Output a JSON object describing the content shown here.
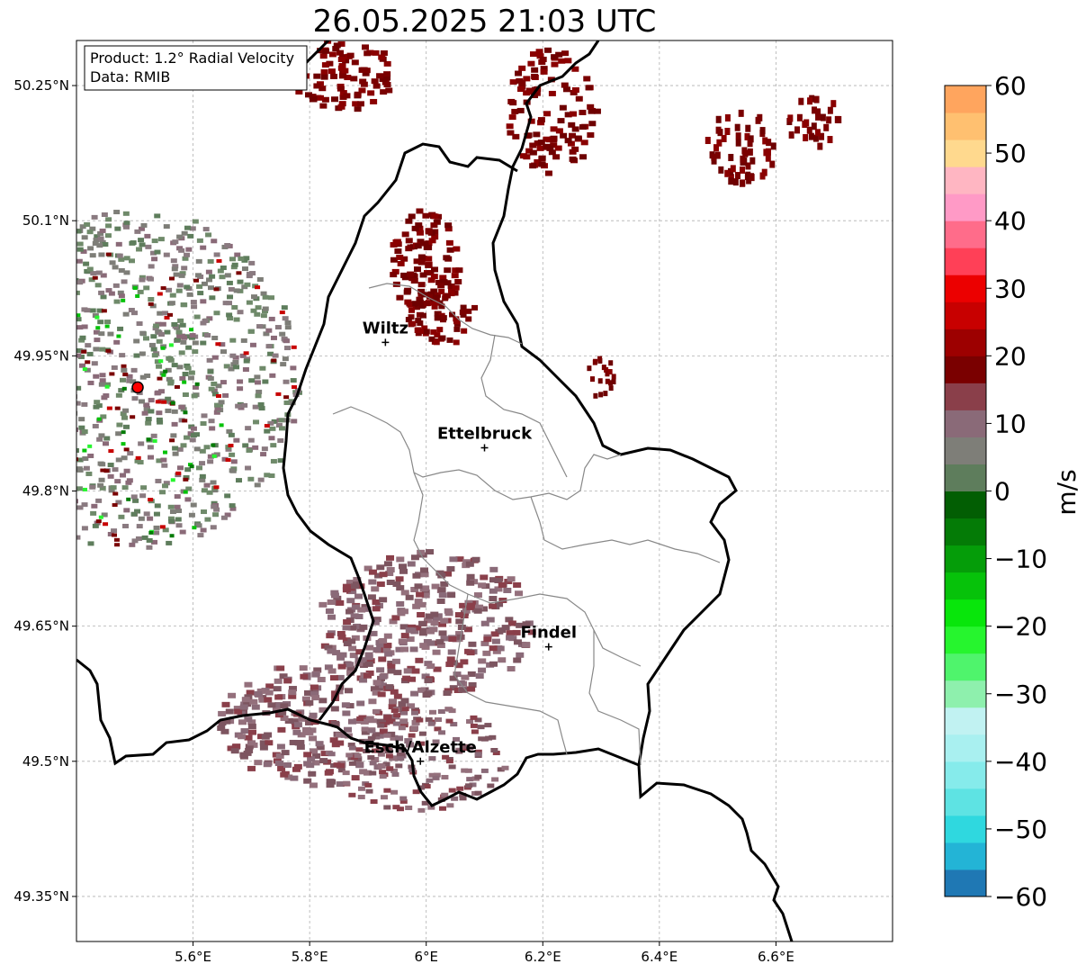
{
  "title": "26.05.2025 21:03 UTC",
  "info_box": {
    "product": "Product: 1.2° Radial Velocity",
    "source": "Data: RMIB"
  },
  "map": {
    "lon_range": [
      5.4,
      6.8
    ],
    "lat_range": [
      49.3,
      50.3
    ],
    "lon_ticks": [
      "5.6°E",
      "5.8°E",
      "6°E",
      "6.2°E",
      "6.4°E",
      "6.6°E"
    ],
    "lat_ticks": [
      "50.25°N",
      "50.1°N",
      "49.95°N",
      "49.8°N",
      "49.65°N",
      "49.5°N",
      "49.35°N"
    ],
    "grid": true,
    "radar_site": {
      "lon": 5.505,
      "lat": 49.915
    },
    "cities": [
      {
        "name": "Wiltz",
        "lon": 5.93,
        "lat": 49.965
      },
      {
        "name": "Ettelbruck",
        "lon": 6.1,
        "lat": 49.848
      },
      {
        "name": "Findel",
        "lon": 6.21,
        "lat": 49.627
      },
      {
        "name": "Esch/Alzette",
        "lon": 5.99,
        "lat": 49.5
      }
    ]
  },
  "colorbar": {
    "label": "m/s",
    "range": [
      -60,
      60
    ],
    "ticks": [
      "60",
      "50",
      "40",
      "30",
      "20",
      "10",
      "0",
      "−10",
      "−20",
      "−30",
      "−40",
      "−50",
      "−60"
    ],
    "colors": [
      "#1f78b4",
      "#23b4d6",
      "#2fd8df",
      "#5ee3e3",
      "#86ebeb",
      "#a9f0f0",
      "#c1f2f2",
      "#8ef0ad",
      "#4ff46c",
      "#26f52e",
      "#08e60b",
      "#06c20a",
      "#059d09",
      "#047b06",
      "#025e03",
      "#5e7d5c",
      "#7e7e78",
      "#8a6a78",
      "#8a3f4a",
      "#7a0000",
      "#9d0000",
      "#c80000",
      "#ec0000",
      "#ff4057",
      "#ff6c8a",
      "#ff9ac6",
      "#ffb6c2",
      "#ffd98e",
      "#ffc070",
      "#ffa55e"
    ]
  }
}
